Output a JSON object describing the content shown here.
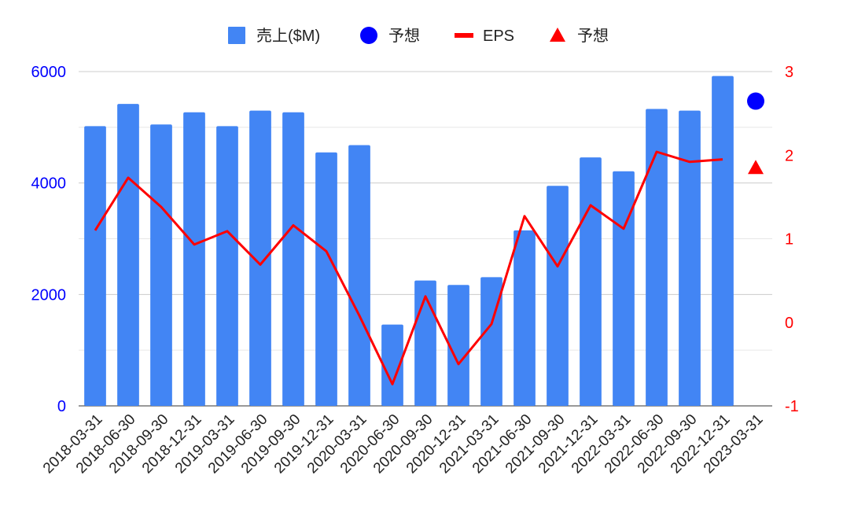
{
  "chart_data": {
    "type": "bar",
    "categories": [
      "2018-03-31",
      "2018-06-30",
      "2018-09-30",
      "2018-12-31",
      "2019-03-31",
      "2019-06-30",
      "2019-09-30",
      "2019-12-31",
      "2020-03-31",
      "2020-06-30",
      "2020-09-30",
      "2020-12-31",
      "2021-03-31",
      "2021-06-30",
      "2021-09-30",
      "2021-12-31",
      "2022-03-31",
      "2022-06-30",
      "2022-09-30",
      "2022-12-31",
      "2023-03-31"
    ],
    "series": [
      {
        "name": "売上($M)",
        "kind": "bar",
        "axis": "left",
        "color": "#4285f4",
        "values": [
          5020,
          5420,
          5050,
          5270,
          5020,
          5300,
          5270,
          4550,
          4680,
          1460,
          2250,
          2170,
          2310,
          3150,
          3950,
          4460,
          4210,
          5330,
          5300,
          5920,
          null
        ]
      },
      {
        "name": "予想",
        "kind": "circle",
        "axis": "left",
        "color": "#0000ff",
        "values": [
          null,
          null,
          null,
          null,
          null,
          null,
          null,
          null,
          null,
          null,
          null,
          null,
          null,
          null,
          null,
          null,
          null,
          null,
          null,
          null,
          5470
        ]
      },
      {
        "name": "EPS",
        "kind": "line",
        "axis": "right",
        "color": "#ff0000",
        "values": [
          1.1,
          1.73,
          1.38,
          0.93,
          1.09,
          0.69,
          1.16,
          0.85,
          0.08,
          -0.74,
          0.31,
          -0.5,
          -0.02,
          1.27,
          0.67,
          1.4,
          1.12,
          2.04,
          1.92,
          1.95,
          null
        ]
      },
      {
        "name": "予想",
        "kind": "triangle",
        "axis": "right",
        "color": "#ff0000",
        "values": [
          null,
          null,
          null,
          null,
          null,
          null,
          null,
          null,
          null,
          null,
          null,
          null,
          null,
          null,
          null,
          null,
          null,
          null,
          null,
          null,
          1.85
        ]
      }
    ],
    "y_left": {
      "min": 0,
      "max": 6000,
      "ticks": [
        "0",
        "2000",
        "4000",
        "6000"
      ],
      "color": "#0000ff"
    },
    "y_right": {
      "min": -1,
      "max": 3,
      "ticks": [
        "-1",
        "0",
        "1",
        "2",
        "3"
      ],
      "color": "#ff0000"
    },
    "grid": true,
    "legend_position": "top"
  }
}
